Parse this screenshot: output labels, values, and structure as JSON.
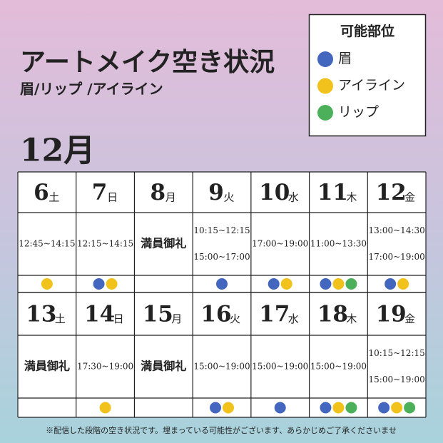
{
  "header": {
    "title": "アートメイク空き状況",
    "subtitle": "眉/リップ /アイライン"
  },
  "legend": {
    "title": "可能部位",
    "items": [
      {
        "label": "眉",
        "color": "#4366bf"
      },
      {
        "label": "アイライン",
        "color": "#f1c21b"
      },
      {
        "label": "リップ",
        "color": "#4cb05a"
      }
    ]
  },
  "calendar": {
    "month": "12月",
    "weeks": [
      [
        {
          "day": "6",
          "weekday": "土",
          "weekday_color": "#5b8ed0",
          "slots": [
            "12:45~14:15"
          ],
          "dots": [
            "#f1c21b"
          ]
        },
        {
          "day": "7",
          "weekday": "日",
          "weekday_color": "#d0463b",
          "slots": [
            "12:15~14:15"
          ],
          "dots": [
            "#4366bf",
            "#f1c21b"
          ]
        },
        {
          "day": "8",
          "weekday": "月",
          "weekday_color": "#222222",
          "slots": [
            "満員御礼"
          ],
          "dots": []
        },
        {
          "day": "9",
          "weekday": "火",
          "weekday_color": "#222222",
          "slots": [
            "10:15~12:15",
            "15:00~17:00"
          ],
          "dots": [
            "#4366bf"
          ]
        },
        {
          "day": "10",
          "weekday": "水",
          "weekday_color": "#222222",
          "slots": [
            "17:00~19:00"
          ],
          "dots": [
            "#4366bf",
            "#f1c21b"
          ]
        },
        {
          "day": "11",
          "weekday": "木",
          "weekday_color": "#222222",
          "slots": [
            "11:00~13:30"
          ],
          "dots": [
            "#4366bf",
            "#f1c21b",
            "#4cb05a"
          ]
        },
        {
          "day": "12",
          "weekday": "金",
          "weekday_color": "#222222",
          "slots": [
            "13:00~14:30",
            "17:00~19:00"
          ],
          "dots": [
            "#4366bf",
            "#f1c21b"
          ]
        }
      ],
      [
        {
          "day": "13",
          "weekday": "土",
          "weekday_color": "#5b8ed0",
          "slots": [
            "満員御礼"
          ],
          "dots": []
        },
        {
          "day": "14",
          "weekday": "日",
          "weekday_color": "#d0463b",
          "slots": [
            "17:30~19:00"
          ],
          "dots": [
            "#f1c21b"
          ]
        },
        {
          "day": "15",
          "weekday": "月",
          "weekday_color": "#222222",
          "slots": [
            "満員御礼"
          ],
          "dots": []
        },
        {
          "day": "16",
          "weekday": "火",
          "weekday_color": "#222222",
          "slots": [
            "15:00~19:00"
          ],
          "dots": [
            "#4366bf",
            "#f1c21b"
          ]
        },
        {
          "day": "17",
          "weekday": "水",
          "weekday_color": "#222222",
          "slots": [
            "15:00~19:00"
          ],
          "dots": [
            "#4366bf"
          ]
        },
        {
          "day": "18",
          "weekday": "木",
          "weekday_color": "#222222",
          "slots": [
            "15:00~19:00"
          ],
          "dots": [
            "#4366bf",
            "#f1c21b",
            "#4cb05a"
          ]
        },
        {
          "day": "19",
          "weekday": "金",
          "weekday_color": "#222222",
          "slots": [
            "10:15~12:15",
            "15:00~19:00"
          ],
          "dots": [
            "#4366bf",
            "#f1c21b",
            "#4cb05a"
          ]
        }
      ]
    ]
  },
  "footer": {
    "note": "※配信した段階の空き状況です。埋まっている可能性がございます、あらかじめご了承くださいませ"
  }
}
